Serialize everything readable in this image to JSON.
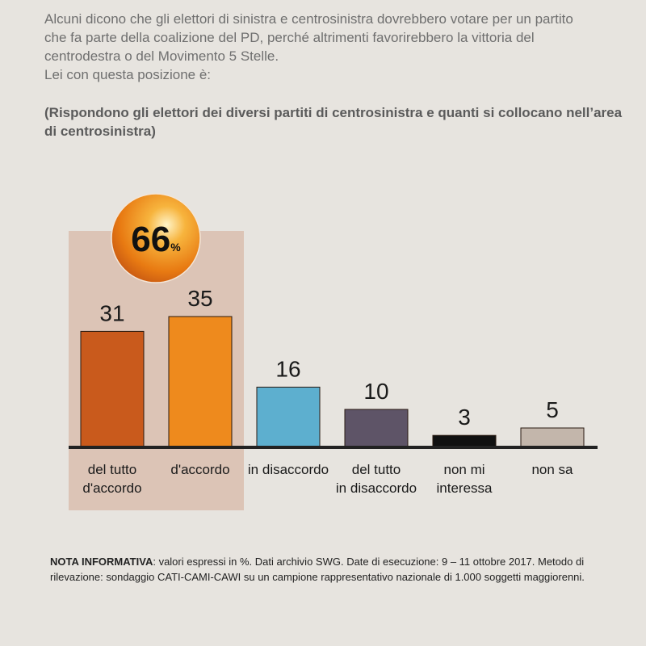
{
  "header": {
    "question_lines": [
      "Alcuni dicono che gli elettori di sinistra e centrosinistra dovrebbero votare per un partito",
      "che fa parte della coalizione del PD, perché altrimenti favorirebbero la vittoria del",
      "centrodestra o del Movimento 5 Stelle.",
      "Lei con questa posizione è:"
    ],
    "subtitle": "(Rispondono gli elettori dei diversi partiti di centrosinistra e quanti si collocano nell’area di centrosinistra)"
  },
  "highlight": {
    "value": "66",
    "unit": "%"
  },
  "chart_data": {
    "type": "bar",
    "categories": [
      [
        "del tutto",
        "d'accordo"
      ],
      [
        "d'accordo"
      ],
      [
        "in disaccordo"
      ],
      [
        "del tutto",
        "in disaccordo"
      ],
      [
        "non mi",
        "interessa"
      ],
      [
        "non sa"
      ]
    ],
    "values": [
      31,
      35,
      16,
      10,
      3,
      5
    ],
    "ylim": [
      0,
      40
    ],
    "colors": [
      "#c95a1c",
      "#ee8a1d",
      "#5dafcf",
      "#5e5467",
      "#111111",
      "#c3b6ab"
    ],
    "highlight_color": "#dcc4b6"
  },
  "note": {
    "label": "NOTA INFORMATIVA",
    "text": ": valori espressi in %. Dati archivio SWG. Date di esecuzione: 9 – 11 ottobre 2017. Metodo di rilevazione: sondaggio CATI-CAMI-CAWI su un campione rappresentativo nazionale di 1.000 soggetti maggiorenni."
  }
}
